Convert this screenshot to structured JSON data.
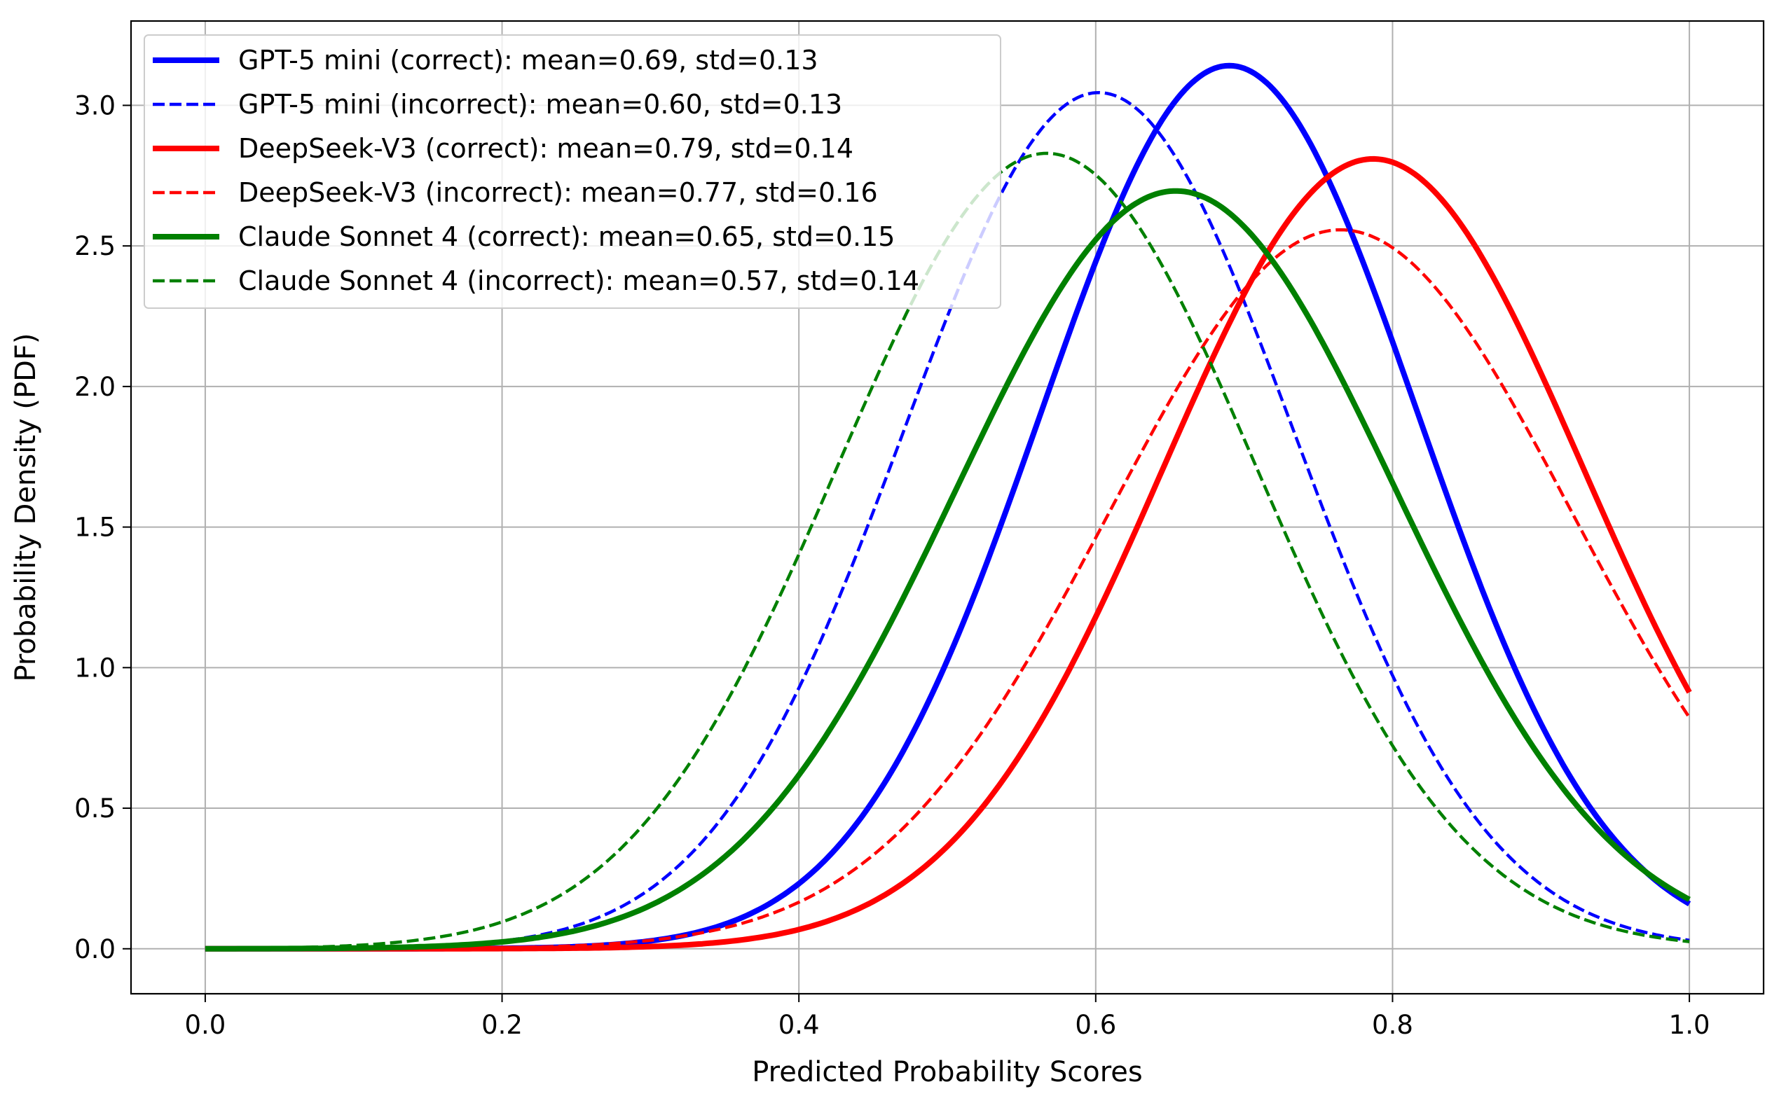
{
  "chart_data": {
    "type": "line",
    "title": "",
    "xlabel": "Predicted Probability Scores",
    "ylabel": "Probability Density (PDF)",
    "xlim": [
      -0.05,
      1.05
    ],
    "ylim": [
      -0.16,
      3.3
    ],
    "grid": true,
    "legend_position": "top-left",
    "xticks": [
      0.0,
      0.2,
      0.4,
      0.6,
      0.8,
      1.0
    ],
    "xtick_labels": [
      "0.0",
      "0.2",
      "0.4",
      "0.6",
      "0.8",
      "1.0"
    ],
    "yticks": [
      0.0,
      0.5,
      1.0,
      1.5,
      2.0,
      2.5,
      3.0
    ],
    "ytick_labels": [
      "0.0",
      "0.5",
      "1.0",
      "1.5",
      "2.0",
      "2.5",
      "3.0"
    ],
    "x_range": [
      0.0,
      1.0
    ],
    "series": [
      {
        "name": "GPT-5 mini (correct): mean=0.69, std=0.13",
        "color": "#0000ff",
        "style": "solid",
        "mean": 0.69,
        "std": 0.127
      },
      {
        "name": "GPT-5 mini (incorrect): mean=0.60, std=0.13",
        "color": "#0000ff",
        "style": "dashed",
        "mean": 0.602,
        "std": 0.131
      },
      {
        "name": "DeepSeek-V3 (correct): mean=0.79, std=0.14",
        "color": "#ff0000",
        "style": "solid",
        "mean": 0.787,
        "std": 0.142
      },
      {
        "name": "DeepSeek-V3 (incorrect): mean=0.77, std=0.16",
        "color": "#ff0000",
        "style": "dashed",
        "mean": 0.765,
        "std": 0.156
      },
      {
        "name": "Claude Sonnet 4 (correct): mean=0.65, std=0.15",
        "color": "#008000",
        "style": "solid",
        "mean": 0.654,
        "std": 0.148
      },
      {
        "name": "Claude Sonnet 4 (incorrect): mean=0.57, std=0.14",
        "color": "#008000",
        "style": "dashed",
        "mean": 0.567,
        "std": 0.141
      }
    ]
  }
}
